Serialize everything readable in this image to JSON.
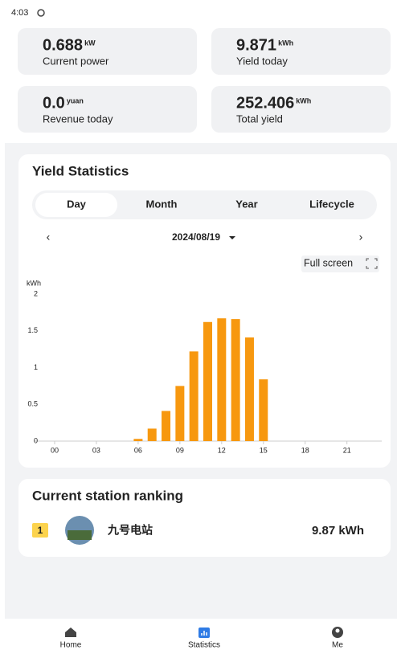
{
  "status_bar": {
    "time": "4:03"
  },
  "summary": [
    {
      "value": "0.688",
      "unit": "kW",
      "label": "Current power"
    },
    {
      "value": "9.871",
      "unit": "kWh",
      "label": "Yield today"
    },
    {
      "value": "0.0",
      "unit": "yuan",
      "label": "Revenue today"
    },
    {
      "value": "252.406",
      "unit": "kWh",
      "label": "Total yield"
    }
  ],
  "yield_statistics": {
    "title": "Yield Statistics",
    "tabs": [
      "Day",
      "Month",
      "Year",
      "Lifecycle"
    ],
    "date": "2024/08/19",
    "full_screen": "Full screen"
  },
  "chart_data": {
    "type": "bar",
    "y_unit": "kWh",
    "x": [
      6,
      7,
      8,
      9,
      10,
      11,
      12,
      13,
      14,
      15
    ],
    "values": [
      0.03,
      0.17,
      0.41,
      0.75,
      1.22,
      1.62,
      1.67,
      1.66,
      1.41,
      0.84
    ],
    "color": "#f7980f",
    "xlim": [
      -1.5,
      23.5
    ],
    "xticks": [
      {
        "value": 0,
        "label": "00"
      },
      {
        "value": 3,
        "label": "03"
      },
      {
        "value": 6,
        "label": "06"
      },
      {
        "value": 9,
        "label": "09"
      },
      12,
      15,
      18,
      21
    ],
    "ylim": [
      0,
      2
    ],
    "yticks": [
      0,
      0.5,
      1,
      1.5,
      2
    ],
    "grid": false
  },
  "ranking": {
    "title": "Current station ranking",
    "rows": [
      {
        "rank": 1,
        "name": "九号电站",
        "yield": "9.87 kWh"
      }
    ]
  },
  "nav": [
    "Home",
    "Statistics",
    "Me"
  ]
}
